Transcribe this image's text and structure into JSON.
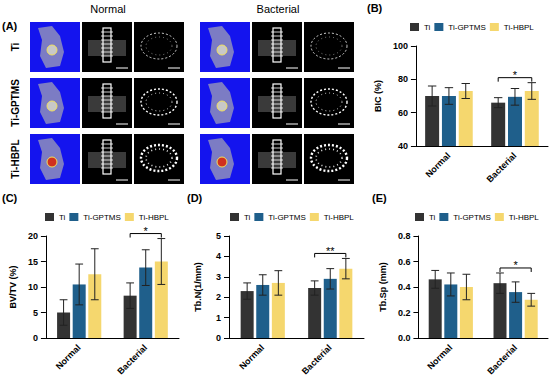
{
  "panel_a": {
    "label": "(A)",
    "columns": [
      "Normal",
      "Bacterial"
    ],
    "rows": [
      "Ti",
      "Ti-GPTMS",
      "Ti-HBPL"
    ]
  },
  "chart_data": [
    {
      "type": "bar",
      "panel_label": "(B)",
      "ylabel": "BIC (%)",
      "categories": [
        "Normal",
        "Bacterial"
      ],
      "series": [
        {
          "name": "Ti",
          "color": "#333333",
          "values": [
            70,
            66
          ],
          "errors": [
            6,
            3
          ]
        },
        {
          "name": "Ti-GPTMS",
          "color": "#1f5f8b",
          "values": [
            70,
            69.5
          ],
          "errors": [
            5,
            5
          ]
        },
        {
          "name": "Ti-HBPL",
          "color": "#f5d76e",
          "values": [
            73,
            73
          ],
          "errors": [
            4.5,
            5
          ]
        }
      ],
      "ylim": [
        40,
        100
      ],
      "yticks": [
        40,
        60,
        80,
        100
      ],
      "grid": false,
      "legend": "upper left",
      "annotations": [
        {
          "text": "*",
          "category": "Bacterial",
          "from": "Ti",
          "to": "Ti-HBPL"
        }
      ]
    },
    {
      "type": "bar",
      "panel_label": "(C)",
      "ylabel": "BV/TV (%)",
      "categories": [
        "Normal",
        "Bacterial"
      ],
      "series": [
        {
          "name": "Ti",
          "color": "#333333",
          "values": [
            5,
            8.3
          ],
          "errors": [
            2.5,
            2.5
          ]
        },
        {
          "name": "Ti-GPTMS",
          "color": "#1f5f8b",
          "values": [
            10.5,
            13.8
          ],
          "errors": [
            4,
            3.5
          ]
        },
        {
          "name": "Ti-HBPL",
          "color": "#f5d76e",
          "values": [
            12.5,
            15
          ],
          "errors": [
            5,
            4.5
          ]
        }
      ],
      "ylim": [
        0,
        20
      ],
      "yticks": [
        0,
        5,
        10,
        15,
        20
      ],
      "grid": false,
      "legend": "upper left",
      "annotations": [
        {
          "text": "*",
          "category": "Bacterial",
          "from": "Ti",
          "to": "Ti-HBPL"
        }
      ]
    },
    {
      "type": "bar",
      "panel_label": "(D)",
      "ylabel": "Tb.N(1/mm)",
      "categories": [
        "Normal",
        "Bacterial"
      ],
      "series": [
        {
          "name": "Ti",
          "color": "#333333",
          "values": [
            2.3,
            2.45
          ],
          "errors": [
            0.4,
            0.35
          ]
        },
        {
          "name": "Ti-GPTMS",
          "color": "#1f5f8b",
          "values": [
            2.6,
            2.9
          ],
          "errors": [
            0.5,
            0.5
          ]
        },
        {
          "name": "Ti-HBPL",
          "color": "#f5d76e",
          "values": [
            2.7,
            3.4
          ],
          "errors": [
            0.6,
            0.5
          ]
        }
      ],
      "ylim": [
        0,
        5
      ],
      "yticks": [
        0,
        1,
        2,
        3,
        4,
        5
      ],
      "grid": false,
      "legend": "upper left",
      "annotations": [
        {
          "text": "**",
          "category": "Bacterial",
          "from": "Ti",
          "to": "Ti-HBPL"
        }
      ]
    },
    {
      "type": "bar",
      "panel_label": "(E)",
      "ylabel": "Tb.Sp (mm)",
      "categories": [
        "Normal",
        "Bacterial"
      ],
      "series": [
        {
          "name": "Ti",
          "color": "#333333",
          "values": [
            0.46,
            0.43
          ],
          "errors": [
            0.07,
            0.08
          ]
        },
        {
          "name": "Ti-GPTMS",
          "color": "#1f5f8b",
          "values": [
            0.42,
            0.36
          ],
          "errors": [
            0.09,
            0.08
          ]
        },
        {
          "name": "Ti-HBPL",
          "color": "#f5d76e",
          "values": [
            0.4,
            0.3
          ],
          "errors": [
            0.1,
            0.05
          ]
        }
      ],
      "ylim": [
        0,
        0.8
      ],
      "yticks": [
        {
          "value": 0,
          "label": "0.0"
        },
        0.2,
        0.4,
        0.6,
        0.8
      ],
      "grid": false,
      "legend": "upper left",
      "annotations": [
        {
          "text": "*",
          "category": "Bacterial",
          "from": "Ti",
          "to": "Ti-HBPL"
        }
      ]
    }
  ]
}
